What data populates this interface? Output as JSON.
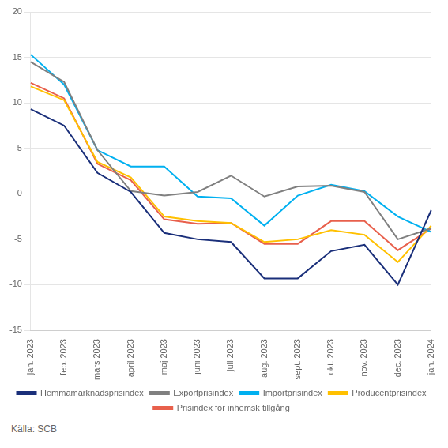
{
  "chart_data": {
    "type": "line",
    "categories": [
      "jan. 2023",
      "feb. 2023",
      "mars 2023",
      "april 2023",
      "maj 2023",
      "juni 2023",
      "juli 2023",
      "aug. 2023",
      "sept. 2023",
      "okt. 2023",
      "nov. 2023",
      "dec. 2023",
      "jan. 2024"
    ],
    "series": [
      {
        "name": "Hemmamarknadsprisindex",
        "color": "#1a2f7a",
        "values": [
          9.3,
          7.5,
          2.3,
          0.2,
          -4.3,
          -5.0,
          -5.3,
          -9.3,
          -9.3,
          -6.3,
          -5.6,
          -10.0,
          -1.8
        ]
      },
      {
        "name": "Exportprisindex",
        "color": "#808080",
        "values": [
          14.5,
          12.3,
          4.8,
          0.3,
          -0.2,
          0.2,
          2.0,
          -0.3,
          0.8,
          0.9,
          0.2,
          -5.0,
          -3.8
        ]
      },
      {
        "name": "Importprisindex",
        "color": "#00b0f0",
        "values": [
          15.3,
          12.0,
          4.8,
          3.0,
          3.0,
          -0.3,
          -0.5,
          -3.5,
          -0.2,
          1.0,
          0.3,
          -2.5,
          -4.2
        ]
      },
      {
        "name": "Producentprisindex",
        "color": "#ffc000",
        "values": [
          11.8,
          10.3,
          3.5,
          1.8,
          -2.5,
          -3.0,
          -3.2,
          -5.3,
          -5.0,
          -4.0,
          -4.5,
          -7.5,
          -3.5
        ]
      },
      {
        "name": "Prisindex för inhemsk tillgång",
        "color": "#e8604c",
        "values": [
          12.2,
          10.5,
          3.3,
          1.5,
          -2.8,
          -3.3,
          -3.2,
          -5.5,
          -5.5,
          -3.0,
          -3.0,
          -6.2,
          -3.8
        ]
      }
    ],
    "ylim": [
      -15,
      20
    ],
    "yticks": [
      -15,
      -10,
      -5,
      0,
      5,
      10,
      15,
      20
    ],
    "grid": true,
    "legend": "bottom",
    "annotations": [
      "Källa: SCB"
    ]
  }
}
